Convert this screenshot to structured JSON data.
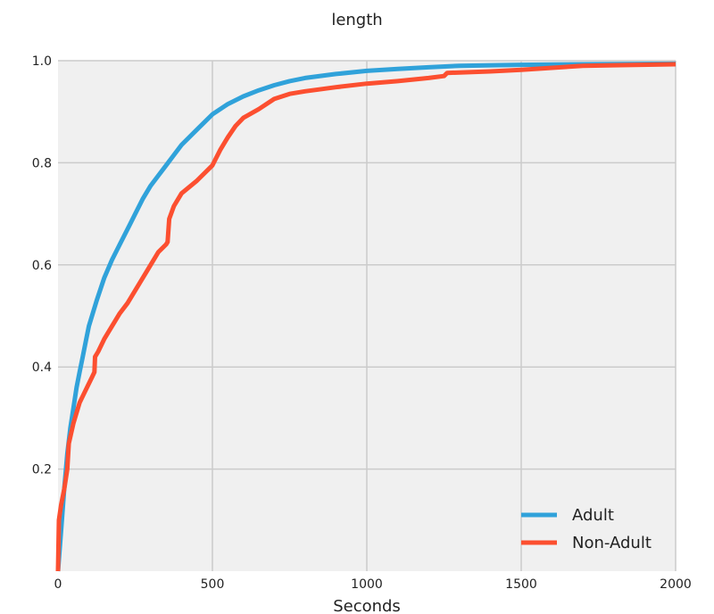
{
  "chart_data": {
    "type": "line",
    "title": "length",
    "xlabel": "Seconds",
    "ylabel": "",
    "xlim": [
      0,
      2000
    ],
    "ylim": [
      0,
      1.0
    ],
    "x_ticks": [
      0,
      500,
      1000,
      1500,
      2000
    ],
    "y_ticks": [
      0.2,
      0.4,
      0.6,
      0.8,
      1.0
    ],
    "x_tick_labels": [
      "0",
      "500",
      "1000",
      "1500",
      "2000"
    ],
    "y_tick_labels": [
      "0.2",
      "0.4",
      "0.6",
      "0.8",
      "1.0"
    ],
    "grid": true,
    "legend_position": "lower-right",
    "colors": {
      "background": "#f0f0f0",
      "grid": "#cbcbcb"
    },
    "series": [
      {
        "name": "Adult",
        "color": "#30a2da",
        "points": [
          [
            0,
            0.0
          ],
          [
            10,
            0.08
          ],
          [
            20,
            0.16
          ],
          [
            30,
            0.23
          ],
          [
            40,
            0.28
          ],
          [
            50,
            0.32
          ],
          [
            60,
            0.36
          ],
          [
            70,
            0.39
          ],
          [
            80,
            0.42
          ],
          [
            90,
            0.45
          ],
          [
            100,
            0.48
          ],
          [
            125,
            0.53
          ],
          [
            150,
            0.575
          ],
          [
            175,
            0.61
          ],
          [
            200,
            0.64
          ],
          [
            225,
            0.67
          ],
          [
            250,
            0.7
          ],
          [
            275,
            0.73
          ],
          [
            300,
            0.755
          ],
          [
            325,
            0.775
          ],
          [
            350,
            0.795
          ],
          [
            375,
            0.815
          ],
          [
            400,
            0.835
          ],
          [
            450,
            0.865
          ],
          [
            500,
            0.895
          ],
          [
            550,
            0.915
          ],
          [
            600,
            0.93
          ],
          [
            650,
            0.942
          ],
          [
            700,
            0.952
          ],
          [
            750,
            0.96
          ],
          [
            800,
            0.966
          ],
          [
            900,
            0.974
          ],
          [
            1000,
            0.98
          ],
          [
            1100,
            0.984
          ],
          [
            1200,
            0.987
          ],
          [
            1300,
            0.99
          ],
          [
            1500,
            0.992
          ],
          [
            1700,
            0.993
          ],
          [
            2000,
            0.994
          ]
        ]
      },
      {
        "name": "Non-Adult",
        "color": "#fc4f30",
        "points": [
          [
            0,
            0.0
          ],
          [
            3,
            0.1
          ],
          [
            10,
            0.13
          ],
          [
            20,
            0.16
          ],
          [
            30,
            0.2
          ],
          [
            35,
            0.25
          ],
          [
            50,
            0.29
          ],
          [
            70,
            0.33
          ],
          [
            90,
            0.355
          ],
          [
            110,
            0.38
          ],
          [
            118,
            0.39
          ],
          [
            120,
            0.42
          ],
          [
            130,
            0.43
          ],
          [
            150,
            0.455
          ],
          [
            175,
            0.48
          ],
          [
            200,
            0.505
          ],
          [
            225,
            0.525
          ],
          [
            250,
            0.55
          ],
          [
            275,
            0.575
          ],
          [
            300,
            0.6
          ],
          [
            325,
            0.625
          ],
          [
            350,
            0.64
          ],
          [
            355,
            0.645
          ],
          [
            360,
            0.69
          ],
          [
            375,
            0.715
          ],
          [
            400,
            0.74
          ],
          [
            450,
            0.765
          ],
          [
            500,
            0.795
          ],
          [
            525,
            0.825
          ],
          [
            550,
            0.85
          ],
          [
            575,
            0.872
          ],
          [
            600,
            0.888
          ],
          [
            650,
            0.905
          ],
          [
            700,
            0.925
          ],
          [
            750,
            0.935
          ],
          [
            800,
            0.94
          ],
          [
            900,
            0.948
          ],
          [
            1000,
            0.955
          ],
          [
            1100,
            0.96
          ],
          [
            1200,
            0.966
          ],
          [
            1250,
            0.97
          ],
          [
            1260,
            0.976
          ],
          [
            1400,
            0.979
          ],
          [
            1500,
            0.982
          ],
          [
            1700,
            0.99
          ],
          [
            1800,
            0.991
          ],
          [
            2000,
            0.993
          ]
        ]
      }
    ]
  }
}
